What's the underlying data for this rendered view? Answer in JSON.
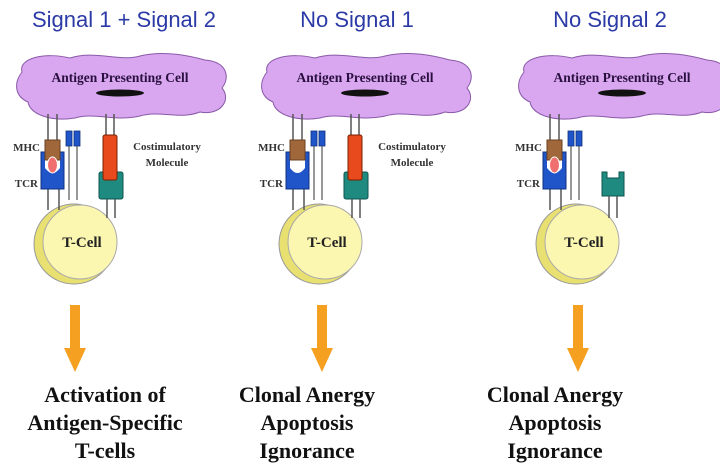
{
  "panels": [
    {
      "title": "Signal 1 + Signal 2",
      "apc_label": "Antigen Presenting Cell",
      "mhc_label": "MHC",
      "tcr_label": "TCR",
      "costim_label": [
        "Costimulatory",
        "Molecule"
      ],
      "tcell_label": "T-Cell",
      "antigen_present": true,
      "costimulatory_ligand_present": true,
      "outcome": [
        "Activation of",
        "Antigen-Specific",
        "T-cells"
      ]
    },
    {
      "title": "No Signal 1",
      "apc_label": "Antigen Presenting Cell",
      "mhc_label": "MHC",
      "tcr_label": "TCR",
      "costim_label": [
        "Costimulatory",
        "Molecule"
      ],
      "tcell_label": "T-Cell",
      "antigen_present": false,
      "costimulatory_ligand_present": true,
      "outcome": [
        "Clonal Anergy",
        "Apoptosis",
        "Ignorance"
      ]
    },
    {
      "title": "No Signal 2",
      "apc_label": "Antigen Presenting Cell",
      "mhc_label": "MHC",
      "tcr_label": "TCR",
      "tcell_label": "T-Cell",
      "antigen_present": true,
      "costimulatory_ligand_present": false,
      "outcome": [
        "Clonal Anergy",
        "Apoptosis",
        "Ignorance"
      ]
    }
  ],
  "colors": {
    "title": "#2b3aa6",
    "apc": "#d9a6f0",
    "apc_stroke": "#8a5aa8",
    "mhc": "#a0683a",
    "tcr": "#1f55c8",
    "antigen": "#f07070",
    "costim_ligand": "#e84a1e",
    "costim_receptor": "#1f8a80",
    "tcell": "#fbf6b0",
    "tcell_rim": "#e8e070",
    "arrow": "#f5a020"
  }
}
